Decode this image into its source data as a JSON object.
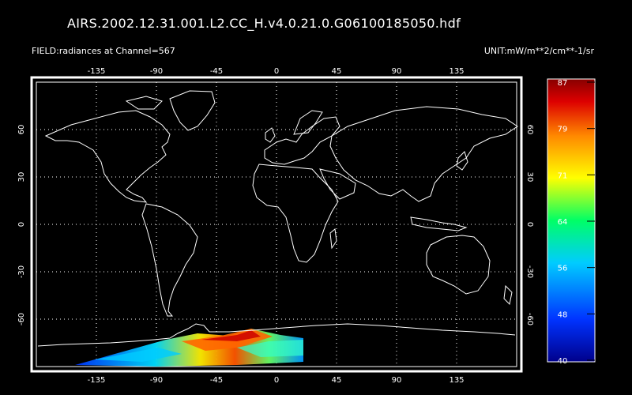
{
  "title": "AIRS.2002.12.31.001.L2.CC_H.v4.0.21.0.G06100185050.hdf",
  "field_label": "FIELD:radiances at Channel=567",
  "unit_label": "UNIT:mW/m**2/cm**-1/sr",
  "map": {
    "projection": "cylindrical",
    "lon_range": [
      -180,
      180
    ],
    "lat_range": [
      -90,
      90
    ],
    "lon_ticks": [
      "-135",
      "-90",
      "-45",
      "0",
      "45",
      "90",
      "135"
    ],
    "lat_ticks": [
      "60",
      "30",
      "0",
      "-30",
      "-60"
    ],
    "grid": "dotted",
    "coastline_color": "#ffffff",
    "swath_region": "Antarctic coast, approx. lon -180 to 20, lat -64 to -80"
  },
  "colorbar": {
    "ticks": [
      "87",
      "79",
      "71",
      "64",
      "56",
      "48",
      "40"
    ],
    "min": 40,
    "max": 87,
    "colors": [
      "#00008b",
      "#0033ff",
      "#00ccff",
      "#00ff66",
      "#ffff00",
      "#ff8800",
      "#dd0000",
      "#880000"
    ]
  }
}
